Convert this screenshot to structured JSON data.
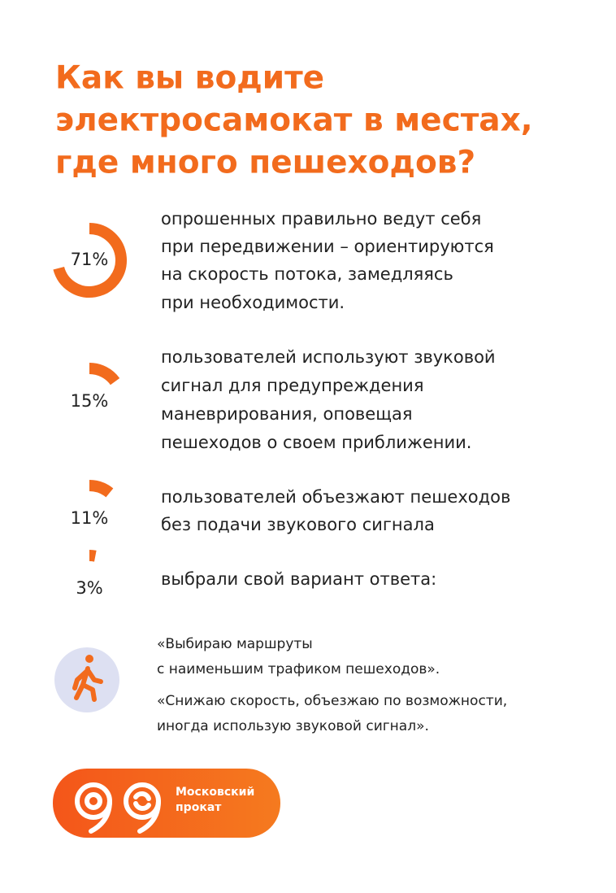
{
  "title": [
    "Как вы водите",
    "электросамокат в местах,",
    "где много пешеходов?"
  ],
  "items": [
    {
      "value": 71,
      "value_label": "71%",
      "lines": [
        "опрошенных правильно ведут себя",
        "при передвижении – ориентируются",
        "на скорость потока, замедляясь",
        "при необходимости."
      ]
    },
    {
      "value": 15,
      "value_label": "15%",
      "lines": [
        "пользователей используют звуковой",
        "сигнал для предупреждения",
        "маневрирования, оповещая",
        "пешеходов о своем приближении."
      ]
    },
    {
      "value": 11,
      "value_label": "11%",
      "lines": [
        "пользователей объезжают пешеходов",
        "без подачи звукового сигнала"
      ]
    },
    {
      "value": 3,
      "value_label": "3%",
      "lines": [
        "выбрали свой вариант ответа:"
      ]
    }
  ],
  "quotes": [
    [
      "«Выбираю маршруты",
      "с наименьшим трафиком пешеходов»."
    ],
    [
      "«Снижаю скорость, объезжаю по возможности,",
      "иногда использую звуковой сигнал»."
    ]
  ],
  "logo": [
    "Московский",
    "прокат"
  ]
}
